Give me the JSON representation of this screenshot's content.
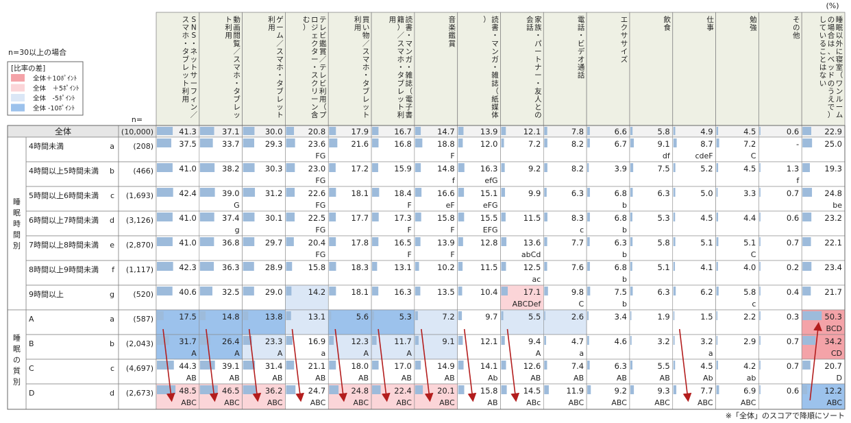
{
  "unit": "(%)",
  "note_n": "n=30以上の場合",
  "legend": {
    "title": "[比率の差]",
    "items": [
      {
        "label": "全体＋10ﾎﾟｲﾝﾄ",
        "color": "#f4a3a8"
      },
      {
        "label": "全体　＋5ﾎﾟｲﾝﾄ",
        "color": "#fbd5d8"
      },
      {
        "label": "全体　-5ﾎﾟｲﾝﾄ",
        "color": "#dbe7f6"
      },
      {
        "label": "全体 -10ﾎﾟｲﾝﾄ",
        "color": "#9cc2ec"
      }
    ]
  },
  "n_header": "n=",
  "footnote": "※「全体」のスコアで降順にソート",
  "groups": [
    {
      "label": [
        "睡",
        "眠",
        "時",
        "間",
        "別"
      ]
    },
    {
      "label": [
        "睡",
        "眠",
        "の",
        "質",
        "別"
      ]
    }
  ],
  "chart_data": {
    "type": "table",
    "columns": [
      "SNS・ネットサーフィン／スマホ・タブレット利用",
      "動画閲覧／スマホ・タブレット利用",
      "ゲーム／スマホ・タブレット利用",
      "テレビ鑑賞／テレビ利用（プロジェクター・スクリーン含む）",
      "買い物／スマホ・タブレット利用",
      "読書・マンガ・雑誌（電子書籍）／スマホ・タブレット利用",
      "音楽鑑賞",
      "読書・マンガ・雑誌（紙媒体）",
      "家族・パートナー・友人との会話",
      "電話・ビデオ通話",
      "エクササイズ",
      "飲食",
      "仕事",
      "勉強",
      "その他",
      "睡眠以外に寝室（ワンルームの場合は、ベッドのうえで）していることはない"
    ],
    "rows": [
      {
        "group": null,
        "label": "全体",
        "code": "",
        "n": "(10,000)",
        "values": [
          "41.3",
          "37.1",
          "30.0",
          "20.8",
          "17.9",
          "16.7",
          "14.7",
          "13.9",
          "12.1",
          "7.8",
          "6.6",
          "5.8",
          "4.9",
          "4.5",
          "0.6",
          "22.9"
        ],
        "sig": [
          "",
          "",
          "",
          "",
          "",
          "",
          "",
          "",
          "",
          "",
          "",
          "",
          "",
          "",
          "",
          ""
        ],
        "shade": [
          0,
          0,
          0,
          0,
          0,
          0,
          0,
          0,
          0,
          0,
          0,
          0,
          0,
          0,
          0,
          0
        ]
      },
      {
        "group": 0,
        "label": "4時間未満",
        "code": "a",
        "n": "(208)",
        "values": [
          "37.5",
          "33.7",
          "29.3",
          "23.6",
          "21.6",
          "16.8",
          "18.8",
          "12.0",
          "7.2",
          "8.2",
          "6.7",
          "9.1",
          "8.7",
          "7.2",
          "-",
          "25.0"
        ],
        "sig": [
          "",
          "",
          "",
          "FG",
          "",
          "",
          "F",
          "",
          "",
          "",
          "",
          "df",
          "cdeF",
          "C",
          "",
          ""
        ],
        "shade": [
          0,
          0,
          0,
          0,
          0,
          0,
          0,
          0,
          0,
          0,
          0,
          0,
          0,
          0,
          0,
          0
        ]
      },
      {
        "group": 0,
        "label": "4時間以上5時間未満",
        "code": "b",
        "n": "(466)",
        "values": [
          "41.0",
          "38.2",
          "30.3",
          "23.0",
          "17.2",
          "15.9",
          "14.8",
          "16.3",
          "9.2",
          "8.2",
          "3.9",
          "7.5",
          "5.2",
          "4.5",
          "1.3",
          "19.3"
        ],
        "sig": [
          "",
          "",
          "",
          "FG",
          "",
          "",
          "f",
          "efG",
          "",
          "",
          "",
          "",
          "",
          "",
          "f",
          ""
        ],
        "shade": [
          0,
          0,
          0,
          0,
          0,
          0,
          0,
          0,
          0,
          0,
          0,
          0,
          0,
          0,
          0,
          0
        ]
      },
      {
        "group": 0,
        "label": "5時間以上6時間未満",
        "code": "c",
        "n": "(1,693)",
        "values": [
          "42.4",
          "39.0",
          "31.2",
          "22.6",
          "18.1",
          "18.4",
          "16.6",
          "15.1",
          "9.9",
          "6.3",
          "6.8",
          "6.3",
          "5.0",
          "3.3",
          "0.7",
          "24.8"
        ],
        "sig": [
          "",
          "G",
          "",
          "FG",
          "",
          "F",
          "eF",
          "eFG",
          "",
          "",
          "b",
          "",
          "",
          "",
          "",
          "be"
        ],
        "shade": [
          0,
          0,
          0,
          0,
          0,
          0,
          0,
          0,
          0,
          0,
          0,
          0,
          0,
          0,
          0,
          0
        ]
      },
      {
        "group": 0,
        "label": "6時間以上7時間未満",
        "code": "d",
        "n": "(3,126)",
        "values": [
          "41.0",
          "37.4",
          "30.1",
          "22.5",
          "17.7",
          "17.3",
          "15.8",
          "15.5",
          "11.5",
          "8.3",
          "6.8",
          "5.3",
          "4.5",
          "4.4",
          "0.6",
          "23.2"
        ],
        "sig": [
          "",
          "g",
          "",
          "FG",
          "",
          "F",
          "F",
          "EFG",
          "",
          "c",
          "b",
          "",
          "",
          "",
          "",
          ""
        ],
        "shade": [
          0,
          0,
          0,
          0,
          0,
          0,
          0,
          0,
          0,
          0,
          0,
          0,
          0,
          0,
          0,
          0
        ]
      },
      {
        "group": 0,
        "label": "7時間以上8時間未満",
        "code": "e",
        "n": "(2,870)",
        "values": [
          "41.0",
          "36.8",
          "29.7",
          "20.4",
          "17.8",
          "16.5",
          "13.9",
          "12.8",
          "13.6",
          "7.7",
          "6.3",
          "5.8",
          "5.1",
          "5.1",
          "0.7",
          "22.1"
        ],
        "sig": [
          "",
          "",
          "",
          "FG",
          "",
          "F",
          "F",
          "",
          "abCd",
          "",
          "b",
          "",
          "",
          "C",
          "",
          ""
        ],
        "shade": [
          0,
          0,
          0,
          0,
          0,
          0,
          0,
          0,
          0,
          0,
          0,
          0,
          0,
          0,
          0,
          0
        ]
      },
      {
        "group": 0,
        "label": "8時間以上9時間未満",
        "code": "f",
        "n": "(1,117)",
        "values": [
          "42.3",
          "36.3",
          "28.9",
          "15.8",
          "18.3",
          "13.1",
          "10.2",
          "11.5",
          "12.5",
          "7.6",
          "6.8",
          "5.1",
          "4.1",
          "4.0",
          "0.2",
          "23.4"
        ],
        "sig": [
          "",
          "",
          "",
          "",
          "",
          "",
          "",
          "",
          "ac",
          "",
          "b",
          "",
          "",
          "",
          "",
          ""
        ],
        "shade": [
          0,
          0,
          0,
          0,
          0,
          0,
          0,
          0,
          0,
          0,
          0,
          0,
          0,
          0,
          0,
          0
        ]
      },
      {
        "group": 0,
        "label": "9時間以上",
        "code": "g",
        "n": "(520)",
        "values": [
          "40.6",
          "32.5",
          "29.0",
          "14.2",
          "18.1",
          "16.3",
          "13.5",
          "10.4",
          "17.1",
          "9.8",
          "7.5",
          "6.3",
          "6.2",
          "5.8",
          "0.4",
          "21.7"
        ],
        "sig": [
          "",
          "",
          "",
          "",
          "",
          "",
          "",
          "",
          "ABCDef",
          "C",
          "b",
          "",
          "",
          "c",
          "",
          ""
        ],
        "shade": [
          0,
          0,
          0,
          -1,
          0,
          0,
          0,
          0,
          1,
          0,
          0,
          0,
          0,
          0,
          0,
          0
        ]
      },
      {
        "group": 1,
        "label": "A",
        "code": "a",
        "n": "(587)",
        "values": [
          "17.5",
          "14.8",
          "13.8",
          "13.1",
          "5.6",
          "5.3",
          "7.2",
          "9.7",
          "5.5",
          "2.6",
          "3.4",
          "1.9",
          "1.5",
          "2.2",
          "0.3",
          "50.3"
        ],
        "sig": [
          "",
          "",
          "",
          "",
          "",
          "",
          "",
          "",
          "",
          "",
          "",
          "",
          "",
          "",
          "",
          "BCD"
        ],
        "shade": [
          -2,
          -2,
          -2,
          -1,
          -2,
          -2,
          -1,
          0,
          -1,
          -1,
          0,
          0,
          0,
          0,
          0,
          2
        ]
      },
      {
        "group": 1,
        "label": "B",
        "code": "b",
        "n": "(2,043)",
        "values": [
          "31.7",
          "26.4",
          "23.3",
          "16.9",
          "12.3",
          "11.7",
          "9.1",
          "12.1",
          "9.4",
          "4.7",
          "4.6",
          "3.2",
          "3.2",
          "2.9",
          "0.7",
          "34.2"
        ],
        "sig": [
          "A",
          "A",
          "A",
          "a",
          "A",
          "A",
          "",
          "",
          "A",
          "a",
          "",
          "",
          "a",
          "",
          "",
          "CD"
        ],
        "shade": [
          -2,
          -2,
          -1,
          0,
          -1,
          -1,
          -1,
          0,
          0,
          0,
          0,
          0,
          0,
          0,
          0,
          2
        ]
      },
      {
        "group": 1,
        "label": "C",
        "code": "c",
        "n": "(4,697)",
        "values": [
          "44.3",
          "39.1",
          "31.4",
          "21.1",
          "18.0",
          "17.0",
          "14.9",
          "14.1",
          "12.6",
          "7.4",
          "6.3",
          "5.5",
          "4.5",
          "4.2",
          "0.7",
          "20.7"
        ],
        "sig": [
          "AB",
          "AB",
          "AB",
          "AB",
          "AB",
          "AB",
          "AB",
          "Ab",
          "AB",
          "AB",
          "AB",
          "AB",
          "Ab",
          "ab",
          "",
          "D"
        ],
        "shade": [
          0,
          0,
          0,
          0,
          0,
          0,
          0,
          0,
          0,
          0,
          0,
          0,
          0,
          0,
          0,
          0
        ]
      },
      {
        "group": 1,
        "label": "D",
        "code": "d",
        "n": "(2,673)",
        "values": [
          "48.5",
          "46.5",
          "36.2",
          "24.7",
          "24.8",
          "22.4",
          "20.1",
          "15.8",
          "14.5",
          "11.9",
          "9.2",
          "9.3",
          "7.7",
          "6.9",
          "0.6",
          "12.2"
        ],
        "sig": [
          "ABC",
          "ABC",
          "ABC",
          "ABC",
          "ABC",
          "ABC",
          "ABC",
          "AB",
          "ABc",
          "ABC",
          "ABC",
          "ABC",
          "ABC",
          "ABC",
          "",
          "ABC"
        ],
        "shade": [
          1,
          1,
          1,
          0,
          1,
          1,
          1,
          0,
          0,
          0,
          0,
          0,
          0,
          0,
          0,
          -2
        ]
      }
    ]
  }
}
